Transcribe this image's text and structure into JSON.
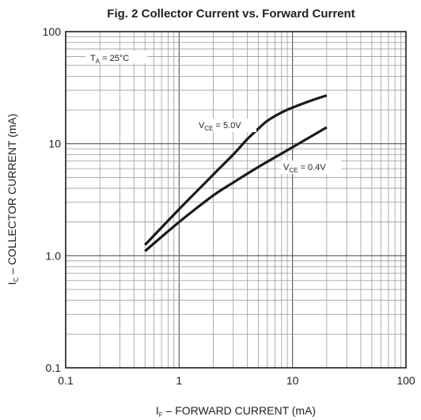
{
  "chart_data": {
    "type": "line",
    "title": "Fig. 2 Collector Current vs. Forward Current",
    "xlabel": {
      "main": "I",
      "sub": "F",
      "rest": " – FORWARD CURRENT (mA)"
    },
    "ylabel": {
      "main": "I",
      "sub": "C",
      "rest": " – COLLECTOR CURRENT (mA)"
    },
    "x_scale": "log",
    "y_scale": "log",
    "xlim": [
      0.1,
      100
    ],
    "ylim": [
      0.1,
      100
    ],
    "x_ticks": [
      {
        "value": 0.1,
        "label": "0.1"
      },
      {
        "value": 1,
        "label": "1"
      },
      {
        "value": 10,
        "label": "10"
      },
      {
        "value": 100,
        "label": "100"
      }
    ],
    "y_ticks": [
      {
        "value": 0.1,
        "label": "0.1"
      },
      {
        "value": 1,
        "label": "1.0"
      },
      {
        "value": 10,
        "label": "10"
      },
      {
        "value": 100,
        "label": "100"
      }
    ],
    "grid": true,
    "annotation": {
      "main": "T",
      "sub": "A",
      "rest": " = 25°C"
    },
    "series": [
      {
        "name": "V_CE = 5.0V",
        "label": {
          "main": "V",
          "sub": "CE",
          "rest": " = 5.0V"
        },
        "x": [
          0.5,
          1,
          2,
          3,
          4,
          5,
          6,
          8,
          10,
          15,
          20
        ],
        "y": [
          1.25,
          2.6,
          5.3,
          8.0,
          11.0,
          13.6,
          16.0,
          19.0,
          21.0,
          24.5,
          27.0
        ]
      },
      {
        "name": "V_CE = 0.4V",
        "label": {
          "main": "V",
          "sub": "CE",
          "rest": " = 0.4V"
        },
        "x": [
          0.5,
          1,
          2,
          3,
          5,
          10,
          20
        ],
        "y": [
          1.1,
          2.0,
          3.45,
          4.5,
          6.2,
          9.3,
          14.0
        ]
      }
    ]
  }
}
